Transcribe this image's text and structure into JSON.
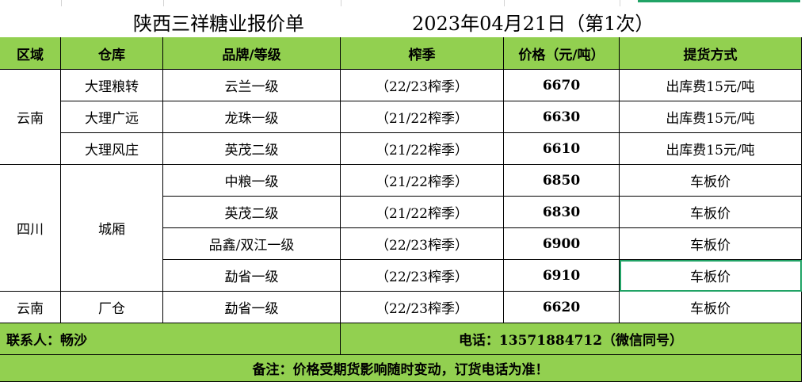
{
  "title": "陕西三祥糖业报价单",
  "date": "2023年04月21日（第1次）",
  "headers": [
    "区域",
    "仓库",
    "品牌/等级",
    "榨季",
    "价格（元/吨）",
    "提货方式"
  ],
  "groups": {
    "yunnan1": "云南",
    "dali1": "大理粮转",
    "dali2": "大理广远",
    "dali3": "大理风庄",
    "sichuan": "四川",
    "chengxiang": "城厢",
    "yunnan2": "云南",
    "changcang": "厂仓"
  },
  "rows": [
    {
      "brand": "云兰一级",
      "season": "（22/23榨季）",
      "price": "6670",
      "delivery": "出库费15元/吨"
    },
    {
      "brand": "龙珠一级",
      "season": "（21/22榨季）",
      "price": "6630",
      "delivery": "出库费15元/吨"
    },
    {
      "brand": "英茂二级",
      "season": "（21/22榨季）",
      "price": "6610",
      "delivery": "出库费15元/吨"
    },
    {
      "brand": "中粮一级",
      "season": "（21/22榨季）",
      "price": "6850",
      "delivery": "车板价"
    },
    {
      "brand": "英茂二级",
      "season": "（21/22榨季）",
      "price": "6830",
      "delivery": "车板价"
    },
    {
      "brand": "品鑫/双江一级",
      "season": "（22/23榨季）",
      "price": "6900",
      "delivery": "车板价"
    },
    {
      "brand": "勐省一级",
      "season": "（22/23榨季）",
      "price": "6910",
      "delivery": "车板价"
    },
    {
      "brand": "勐省一级",
      "season": "（22/23榨季）",
      "price": "6620",
      "delivery": "车板价"
    }
  ],
  "contact": "联系人：畅沙",
  "phone": "电话：13571884712（微信同号）",
  "note": "备注：价格受期货影响随时变动，订货电话为准！",
  "colors": {
    "header_green": "#92d050",
    "selection": "#21a366"
  }
}
